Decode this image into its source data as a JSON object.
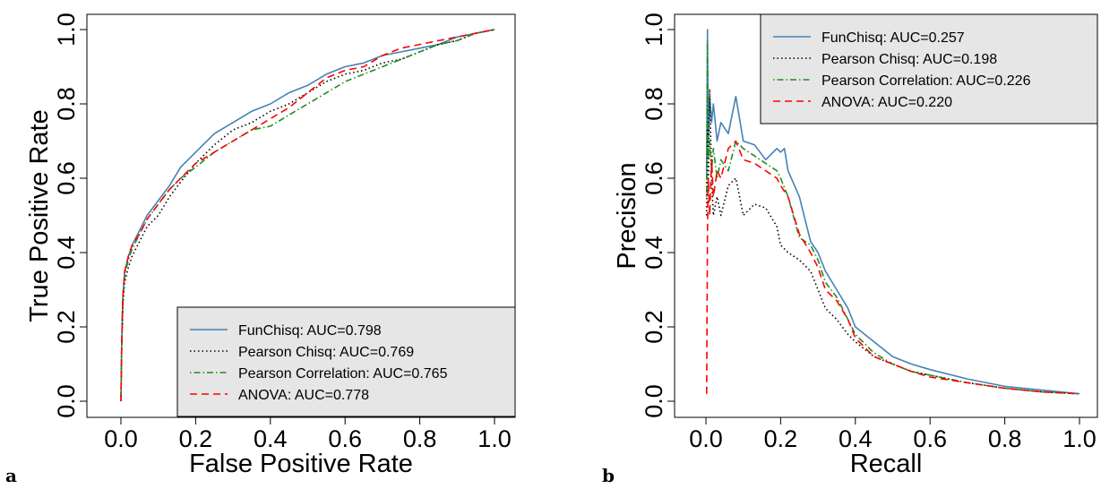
{
  "panels": [
    {
      "letter": "a",
      "chart_data": {
        "type": "line",
        "xlabel": "False Positive Rate",
        "ylabel": "True Positive Rate",
        "xlim": [
          0,
          1
        ],
        "ylim": [
          0,
          1
        ],
        "xticks": [
          "0.0",
          "0.2",
          "0.4",
          "0.6",
          "0.8",
          "1.0"
        ],
        "yticks": [
          "0.0",
          "0.2",
          "0.4",
          "0.6",
          "0.8",
          "1.0"
        ],
        "legend_position": "bottom-right",
        "grid": false,
        "series": [
          {
            "name": "FunChisq: AUC=0.798",
            "color": "#4682b4",
            "dash": "solid",
            "x": [
              0,
              0.002,
              0.005,
              0.01,
              0.02,
              0.03,
              0.05,
              0.07,
              0.1,
              0.13,
              0.16,
              0.2,
              0.25,
              0.3,
              0.35,
              0.4,
              0.45,
              0.5,
              0.55,
              0.6,
              0.65,
              0.7,
              0.75,
              0.8,
              0.85,
              0.9,
              0.95,
              1.0
            ],
            "y": [
              0,
              0.15,
              0.28,
              0.35,
              0.39,
              0.42,
              0.46,
              0.5,
              0.54,
              0.58,
              0.63,
              0.67,
              0.72,
              0.75,
              0.78,
              0.8,
              0.83,
              0.85,
              0.88,
              0.9,
              0.91,
              0.93,
              0.94,
              0.95,
              0.96,
              0.98,
              0.99,
              1.0
            ]
          },
          {
            "name": "Pearson Chisq: AUC=0.769",
            "color": "#000000",
            "dash": "dotted",
            "x": [
              0,
              0.002,
              0.005,
              0.01,
              0.02,
              0.03,
              0.05,
              0.07,
              0.1,
              0.13,
              0.16,
              0.2,
              0.25,
              0.3,
              0.35,
              0.4,
              0.45,
              0.5,
              0.55,
              0.6,
              0.65,
              0.7,
              0.75,
              0.8,
              0.85,
              0.9,
              0.95,
              1.0
            ],
            "y": [
              0,
              0.14,
              0.26,
              0.32,
              0.36,
              0.39,
              0.43,
              0.47,
              0.5,
              0.55,
              0.59,
              0.64,
              0.69,
              0.73,
              0.75,
              0.78,
              0.8,
              0.83,
              0.86,
              0.88,
              0.89,
              0.91,
              0.92,
              0.94,
              0.96,
              0.97,
              0.99,
              1.0
            ]
          },
          {
            "name": "Pearson Correlation: AUC=0.765",
            "color": "#228b22",
            "dash": "dotdash",
            "x": [
              0,
              0.002,
              0.005,
              0.01,
              0.02,
              0.03,
              0.05,
              0.07,
              0.1,
              0.13,
              0.16,
              0.2,
              0.25,
              0.3,
              0.35,
              0.4,
              0.45,
              0.5,
              0.55,
              0.6,
              0.65,
              0.7,
              0.75,
              0.8,
              0.85,
              0.9,
              0.95,
              1.0
            ],
            "y": [
              0,
              0.14,
              0.27,
              0.34,
              0.38,
              0.41,
              0.45,
              0.49,
              0.53,
              0.57,
              0.6,
              0.63,
              0.67,
              0.7,
              0.73,
              0.74,
              0.77,
              0.8,
              0.83,
              0.86,
              0.88,
              0.9,
              0.92,
              0.94,
              0.96,
              0.97,
              0.99,
              1.0
            ]
          },
          {
            "name": "ANOVA: AUC=0.778",
            "color": "#ff0000",
            "dash": "dashed",
            "x": [
              0,
              0.002,
              0.005,
              0.01,
              0.02,
              0.03,
              0.05,
              0.07,
              0.1,
              0.13,
              0.16,
              0.2,
              0.25,
              0.3,
              0.35,
              0.4,
              0.45,
              0.5,
              0.55,
              0.6,
              0.65,
              0.7,
              0.75,
              0.8,
              0.85,
              0.9,
              0.95,
              1.0
            ],
            "y": [
              0,
              0.14,
              0.28,
              0.35,
              0.39,
              0.42,
              0.45,
              0.49,
              0.53,
              0.57,
              0.6,
              0.64,
              0.67,
              0.7,
              0.73,
              0.76,
              0.79,
              0.83,
              0.87,
              0.89,
              0.9,
              0.93,
              0.95,
              0.96,
              0.97,
              0.98,
              0.99,
              1.0
            ]
          }
        ]
      }
    },
    {
      "letter": "b",
      "chart_data": {
        "type": "line",
        "xlabel": "Recall",
        "ylabel": "Precision",
        "xlim": [
          0,
          1
        ],
        "ylim": [
          0,
          1
        ],
        "xticks": [
          "0.0",
          "0.2",
          "0.4",
          "0.6",
          "0.8",
          "1.0"
        ],
        "yticks": [
          "0.0",
          "0.2",
          "0.4",
          "0.6",
          "0.8",
          "1.0"
        ],
        "legend_position": "top-right",
        "grid": false,
        "series": [
          {
            "name": "FunChisq: AUC=0.257",
            "color": "#4682b4",
            "dash": "solid",
            "x": [
              0.002,
              0.004,
              0.006,
              0.01,
              0.015,
              0.02,
              0.03,
              0.04,
              0.06,
              0.08,
              0.1,
              0.13,
              0.16,
              0.19,
              0.2,
              0.21,
              0.22,
              0.25,
              0.28,
              0.3,
              0.32,
              0.35,
              0.38,
              0.4,
              0.45,
              0.5,
              0.55,
              0.6,
              0.7,
              0.8,
              0.9,
              1.0
            ],
            "y": [
              0.6,
              1.0,
              0.7,
              0.82,
              0.75,
              0.8,
              0.7,
              0.75,
              0.72,
              0.82,
              0.7,
              0.69,
              0.65,
              0.68,
              0.67,
              0.68,
              0.62,
              0.55,
              0.43,
              0.4,
              0.35,
              0.3,
              0.25,
              0.2,
              0.16,
              0.12,
              0.1,
              0.085,
              0.06,
              0.04,
              0.03,
              0.02
            ]
          },
          {
            "name": "Pearson Chisq: AUC=0.198",
            "color": "#000000",
            "dash": "dotted",
            "x": [
              0.002,
              0.004,
              0.006,
              0.01,
              0.015,
              0.02,
              0.03,
              0.04,
              0.06,
              0.08,
              0.1,
              0.13,
              0.16,
              0.19,
              0.2,
              0.22,
              0.25,
              0.28,
              0.3,
              0.32,
              0.35,
              0.38,
              0.4,
              0.45,
              0.5,
              0.55,
              0.6,
              0.7,
              0.8,
              0.9,
              1.0
            ],
            "y": [
              0.5,
              0.8,
              0.55,
              0.84,
              0.6,
              0.5,
              0.55,
              0.5,
              0.58,
              0.6,
              0.5,
              0.53,
              0.52,
              0.47,
              0.42,
              0.4,
              0.38,
              0.35,
              0.3,
              0.25,
              0.22,
              0.18,
              0.16,
              0.12,
              0.1,
              0.08,
              0.07,
              0.05,
              0.035,
              0.025,
              0.02
            ]
          },
          {
            "name": "Pearson Correlation: AUC=0.226",
            "color": "#228b22",
            "dash": "dotdash",
            "x": [
              0.002,
              0.004,
              0.006,
              0.01,
              0.015,
              0.02,
              0.03,
              0.04,
              0.06,
              0.08,
              0.1,
              0.13,
              0.16,
              0.19,
              0.2,
              0.22,
              0.25,
              0.28,
              0.3,
              0.32,
              0.35,
              0.38,
              0.4,
              0.45,
              0.5,
              0.55,
              0.6,
              0.7,
              0.8,
              0.9,
              1.0
            ],
            "y": [
              0.55,
              0.97,
              0.65,
              0.7,
              0.62,
              0.68,
              0.6,
              0.65,
              0.62,
              0.7,
              0.68,
              0.66,
              0.64,
              0.62,
              0.6,
              0.55,
              0.44,
              0.42,
              0.38,
              0.32,
              0.28,
              0.22,
              0.18,
              0.13,
              0.1,
              0.08,
              0.07,
              0.05,
              0.035,
              0.025,
              0.02
            ]
          },
          {
            "name": "ANOVA: AUC=0.220",
            "color": "#ff0000",
            "dash": "dashed",
            "x": [
              0.002,
              0.004,
              0.006,
              0.01,
              0.015,
              0.02,
              0.03,
              0.04,
              0.06,
              0.08,
              0.1,
              0.13,
              0.16,
              0.19,
              0.2,
              0.22,
              0.25,
              0.28,
              0.3,
              0.32,
              0.35,
              0.38,
              0.4,
              0.45,
              0.5,
              0.55,
              0.6,
              0.7,
              0.8,
              0.9,
              1.0
            ],
            "y": [
              0.02,
              0.45,
              0.6,
              0.5,
              0.65,
              0.55,
              0.62,
              0.6,
              0.68,
              0.7,
              0.65,
              0.64,
              0.62,
              0.6,
              0.58,
              0.55,
              0.45,
              0.4,
              0.36,
              0.3,
              0.27,
              0.22,
              0.17,
              0.12,
              0.1,
              0.08,
              0.065,
              0.05,
              0.035,
              0.025,
              0.02
            ]
          }
        ]
      }
    }
  ]
}
